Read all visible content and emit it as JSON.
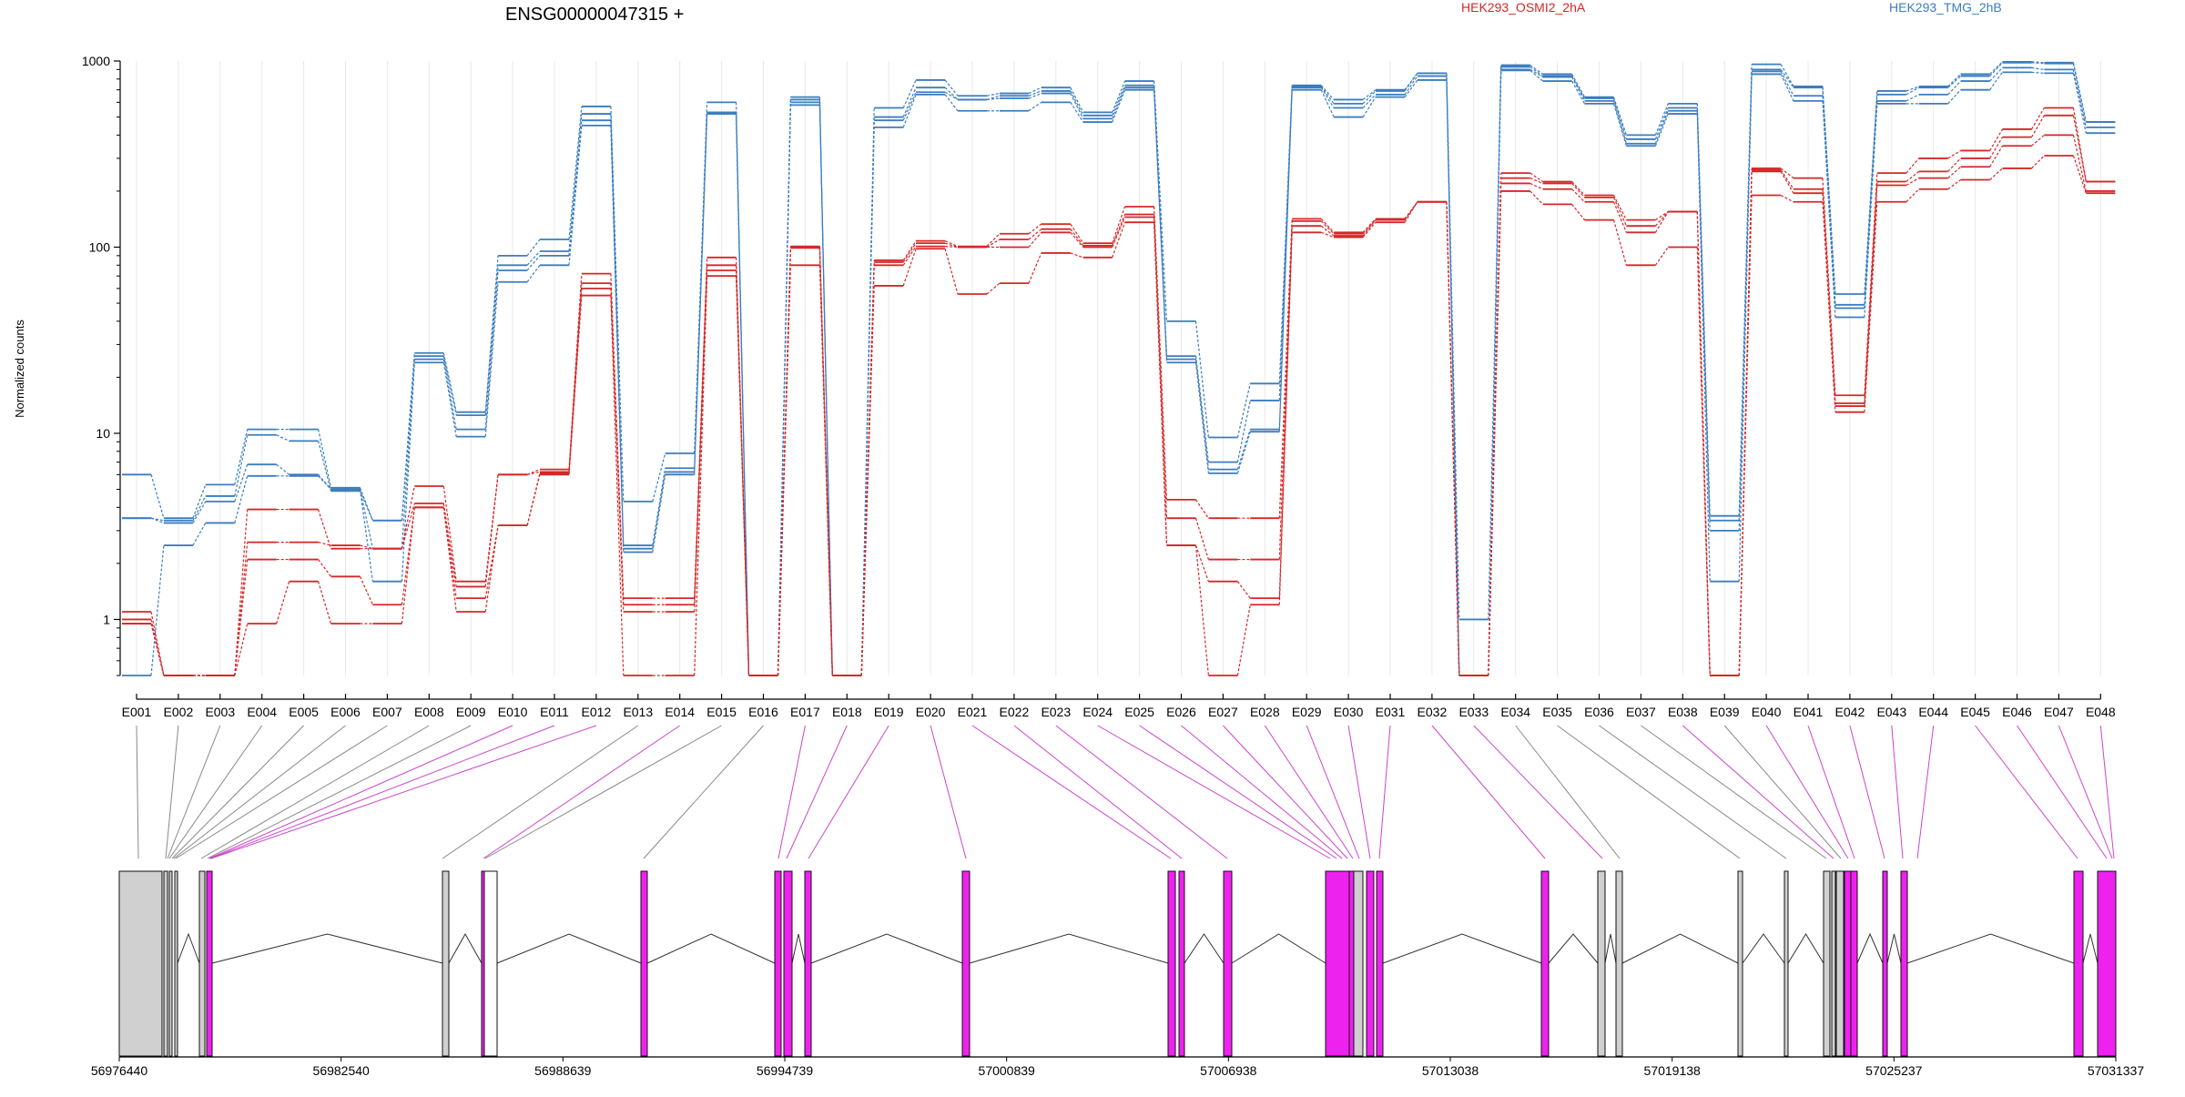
{
  "chart_data": {
    "type": "line",
    "title": "ENSG00000047315 +",
    "ylabel": "Normalized counts",
    "yscale": "log",
    "ylim": [
      0.5,
      1000
    ],
    "yticks": [
      "1",
      "10",
      "100",
      "1000"
    ],
    "legend": [
      {
        "label": "HEK293_OSMI2_2hA",
        "color": "#d62728"
      },
      {
        "label": "HEK293_TMG_2hB",
        "color": "#3b7dbf"
      }
    ],
    "legend_placement": "top-right",
    "categories": [
      "E001",
      "E002",
      "E003",
      "E004",
      "E005",
      "E006",
      "E007",
      "E008",
      "E009",
      "E010",
      "E011",
      "E012",
      "E013",
      "E014",
      "E015",
      "E016",
      "E017",
      "E018",
      "E019",
      "E020",
      "E021",
      "E022",
      "E023",
      "E024",
      "E025",
      "E026",
      "E027",
      "E028",
      "E029",
      "E030",
      "E031",
      "E032",
      "E033",
      "E034",
      "E035",
      "E036",
      "E037",
      "E038",
      "E039",
      "E040",
      "E041",
      "E042",
      "E043",
      "E044",
      "E045",
      "E046",
      "E047",
      "E048"
    ],
    "series": [
      {
        "group": "HEK293_TMG_2hB",
        "values": [
          6,
          3.5,
          5.3,
          10.5,
          10.5,
          5.1,
          3.4,
          27,
          13,
          90,
          110,
          570,
          4.3,
          7.8,
          600,
          0.5,
          640,
          0.5,
          560,
          790,
          650,
          670,
          720,
          530,
          780,
          40,
          9.5,
          18.5,
          740,
          620,
          700,
          860,
          1,
          950,
          850,
          640,
          400,
          590,
          3.6,
          960,
          730,
          56,
          690,
          730,
          850,
          990,
          980,
          470
        ]
      },
      {
        "group": "HEK293_TMG_2hB",
        "values": [
          3.5,
          3.4,
          4.6,
          9.8,
          9.1,
          4.9,
          3.4,
          26,
          12.5,
          80,
          95,
          520,
          2.5,
          6.5,
          530,
          0.5,
          620,
          0.5,
          500,
          720,
          620,
          650,
          690,
          510,
          740,
          26,
          7,
          15,
          730,
          590,
          690,
          860,
          0.5,
          930,
          830,
          630,
          380,
          560,
          3.4,
          900,
          720,
          49,
          660,
          720,
          830,
          980,
          970,
          470
        ]
      },
      {
        "group": "HEK293_TMG_2hB",
        "values": [
          3.5,
          3.3,
          4.3,
          6.8,
          6,
          5,
          2.4,
          25,
          10.5,
          75,
          90,
          480,
          2.4,
          6.2,
          520,
          0.5,
          600,
          0.5,
          480,
          680,
          620,
          630,
          670,
          490,
          720,
          25,
          6.4,
          10.5,
          720,
          560,
          660,
          830,
          0.5,
          900,
          820,
          610,
          360,
          540,
          3,
          880,
          650,
          47,
          610,
          660,
          780,
          920,
          900,
          440
        ]
      },
      {
        "group": "HEK293_TMG_2hB",
        "values": [
          0.5,
          2.5,
          3.3,
          5.9,
          5.9,
          5,
          1.6,
          24,
          9.6,
          65,
          80,
          450,
          2.3,
          6,
          520,
          0.5,
          580,
          0.5,
          440,
          660,
          540,
          540,
          600,
          470,
          700,
          24,
          6.1,
          10.2,
          700,
          500,
          640,
          790,
          0.5,
          890,
          780,
          590,
          350,
          520,
          1.6,
          850,
          610,
          42,
          590,
          590,
          700,
          870,
          860,
          410
        ]
      },
      {
        "group": "HEK293_OSMI2_2hA",
        "values": [
          1.1,
          0.5,
          0.5,
          3.9,
          3.9,
          2.4,
          2.4,
          5.2,
          1.6,
          6,
          6.4,
          72,
          1.3,
          1.3,
          88,
          0.5,
          101,
          0.5,
          85,
          108,
          101,
          118,
          133,
          105,
          165,
          4.4,
          3.5,
          3.5,
          142,
          120,
          142,
          175,
          0.5,
          250,
          225,
          190,
          140,
          155,
          0.5,
          265,
          235,
          16,
          250,
          300,
          330,
          430,
          560,
          225
        ]
      },
      {
        "group": "HEK293_OSMI2_2hA",
        "values": [
          1,
          0.5,
          0.5,
          2.6,
          2.6,
          2.5,
          2.4,
          4.2,
          1.5,
          6,
          6.2,
          64,
          1.2,
          1.2,
          80,
          0.5,
          100,
          0.5,
          83,
          105,
          100,
          110,
          125,
          102,
          150,
          3.5,
          2.1,
          2.1,
          138,
          118,
          140,
          175,
          0.5,
          235,
          220,
          185,
          130,
          155,
          0.5,
          260,
          205,
          14.5,
          225,
          255,
          300,
          390,
          510,
          225
        ]
      },
      {
        "group": "HEK293_OSMI2_2hA",
        "values": [
          0.95,
          0.5,
          0.5,
          2.1,
          2.1,
          1.7,
          1.2,
          4,
          1.3,
          3.2,
          6.1,
          60,
          1.1,
          1.1,
          75,
          0.5,
          99,
          0.5,
          80,
          101,
          100,
          100,
          120,
          100,
          145,
          2.5,
          1.6,
          1.3,
          130,
          115,
          140,
          175,
          0.5,
          220,
          205,
          175,
          120,
          155,
          0.5,
          255,
          195,
          14,
          215,
          235,
          270,
          350,
          400,
          200
        ]
      },
      {
        "group": "HEK293_OSMI2_2hA",
        "values": [
          0.95,
          0.5,
          0.5,
          0.95,
          1.6,
          0.95,
          0.95,
          4,
          1.1,
          3.2,
          6,
          55,
          0.5,
          0.5,
          70,
          0.5,
          80,
          0.5,
          62,
          98,
          56,
          64,
          93,
          88,
          136,
          2.5,
          0.5,
          1.2,
          120,
          113,
          136,
          175,
          0.5,
          200,
          170,
          140,
          80,
          100,
          0.5,
          190,
          175,
          13,
          175,
          205,
          230,
          265,
          310,
          195
        ]
      }
    ],
    "genome_coords": [
      "56976440",
      "56982540",
      "56988639",
      "56994739",
      "57000839",
      "57006938",
      "57013038",
      "57019138",
      "57025237",
      "57031337"
    ]
  }
}
